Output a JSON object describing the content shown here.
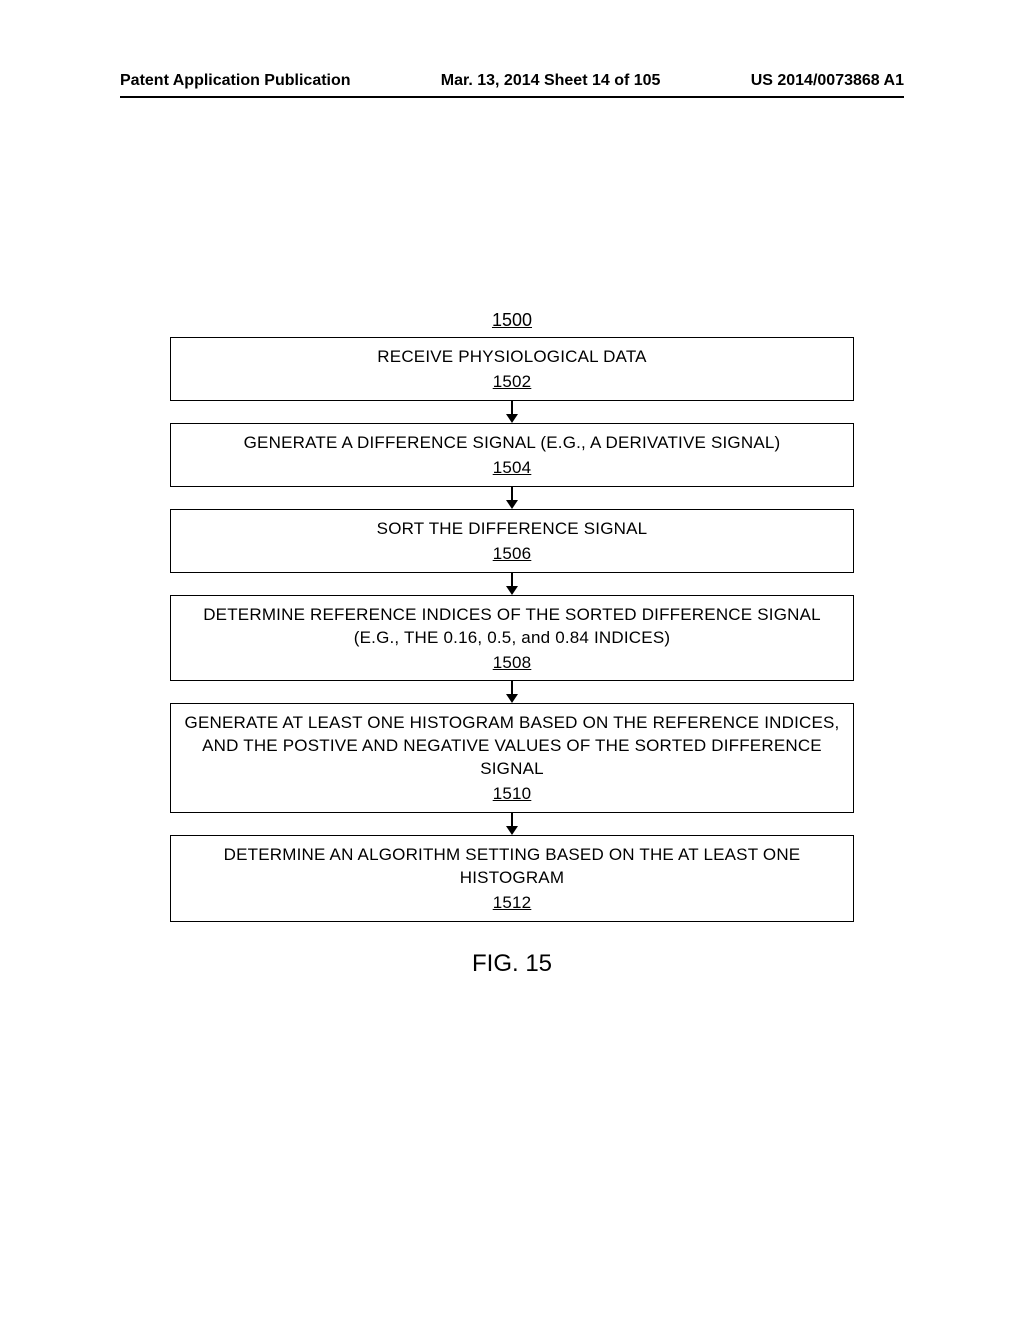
{
  "header": {
    "left": "Patent Application Publication",
    "center": "Mar. 13, 2014  Sheet 14 of 105",
    "right": "US 2014/0073868 A1"
  },
  "flowchart": {
    "figure_number": "1500",
    "caption": "FIG. 15",
    "arrow_color": "#000000",
    "box_border_color": "#000000",
    "background_color": "#ffffff",
    "text_color": "#000000",
    "box_fontsize": 17,
    "caption_fontsize": 24,
    "boxes": [
      {
        "text": "RECEIVE PHYSIOLOGICAL DATA",
        "ref": "1502"
      },
      {
        "text": "GENERATE A DIFFERENCE SIGNAL (E.G., A DERIVATIVE SIGNAL)",
        "ref": "1504"
      },
      {
        "text": "SORT THE DIFFERENCE SIGNAL",
        "ref": "1506"
      },
      {
        "text": "DETERMINE REFERENCE INDICES OF THE SORTED DIFFERENCE SIGNAL (E.G., THE 0.16, 0.5, and 0.84 INDICES)",
        "ref": "1508"
      },
      {
        "text": "GENERATE AT LEAST ONE HISTOGRAM BASED ON THE REFERENCE INDICES, AND THE POSTIVE AND NEGATIVE VALUES OF THE SORTED DIFFERENCE SIGNAL",
        "ref": "1510"
      },
      {
        "text": "DETERMINE AN ALGORITHM SETTING BASED ON THE AT LEAST ONE HISTOGRAM",
        "ref": "1512"
      }
    ]
  }
}
